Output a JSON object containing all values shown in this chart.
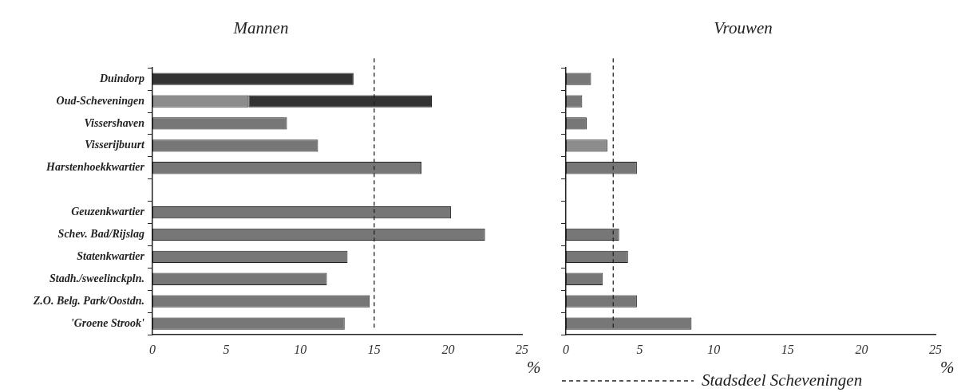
{
  "chart_data": [
    {
      "type": "bar",
      "title": "Mannen",
      "xlabel": "%",
      "orientation": "horizontal",
      "stacked": true,
      "grid": false,
      "legend": false,
      "categories": [
        "Duindorp",
        "Oud-Scheveningen",
        "Vissershaven",
        "Visserijbuurt",
        "Harstenhoekkwartier",
        null,
        "Geuzenkwartier",
        "Schev. Bad/Rijslag",
        "Statenkwartier",
        "Stadh./sweelinckpln.",
        "Z.O. Belg. Park/Oostdn.",
        "'Groene Strook'"
      ],
      "series": [
        {
          "colors": [
            "#333333",
            "#8c8c8c",
            "#777777",
            "#777777",
            "#777777",
            "#777777",
            "#777777",
            "#777777",
            "#777777",
            "#777777",
            "#777777",
            "#777777"
          ],
          "values": [
            13.6,
            6.5,
            9.1,
            11.2,
            18.2,
            null,
            20.2,
            22.5,
            13.2,
            11.8,
            14.7,
            13.0
          ]
        },
        {
          "color": "#333333",
          "values": [
            null,
            12.4,
            null,
            null,
            null,
            null,
            null,
            null,
            null,
            null,
            null,
            null
          ]
        }
      ],
      "xlim": [
        0,
        25
      ],
      "xticks": [
        0,
        5,
        10,
        15,
        20,
        25
      ],
      "ref_lines": [
        {
          "axis": "x",
          "value": 15,
          "line_style": "dashed"
        }
      ]
    },
    {
      "type": "bar",
      "title": "Vrouwen",
      "xlabel": "%",
      "orientation": "horizontal",
      "stacked": true,
      "grid": false,
      "legend": false,
      "tick_labels": "x",
      "categories": [
        null,
        null,
        null,
        null,
        null,
        null,
        null,
        null,
        null,
        null,
        null,
        null
      ],
      "series": [
        {
          "colors": [
            "#777777",
            "#777777",
            "#777777",
            "#8c8c8c",
            "#777777",
            "#777777",
            "#777777",
            "#777777",
            "#777777",
            "#777777",
            "#777777",
            "#777777"
          ],
          "values": [
            1.7,
            1.1,
            1.4,
            2.8,
            4.8,
            null,
            null,
            3.6,
            4.2,
            2.5,
            4.8,
            8.5
          ]
        }
      ],
      "xlim": [
        0,
        25
      ],
      "xticks": [
        0,
        5,
        10,
        15,
        20,
        25
      ],
      "ref_lines": [
        {
          "axis": "x",
          "value": 3.2,
          "line_style": "dashed",
          "label": "Stadsdeel Scheveningen"
        }
      ]
    }
  ]
}
